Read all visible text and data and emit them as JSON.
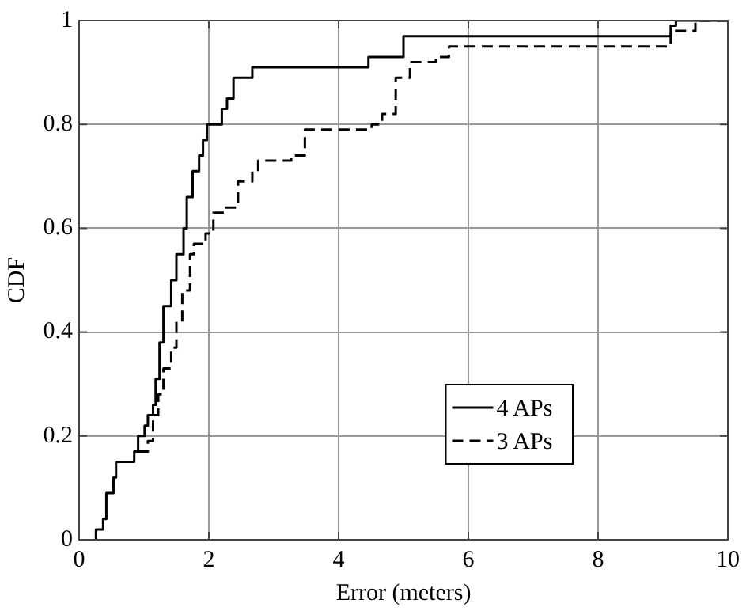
{
  "chart_data": {
    "type": "step",
    "xlabel": "Error (meters)",
    "ylabel": "CDF",
    "xlim": [
      0,
      10
    ],
    "xticks": [
      0,
      2,
      4,
      6,
      8,
      10
    ],
    "ylim": [
      0,
      1
    ],
    "yticks": [
      0,
      0.2,
      0.4,
      0.6,
      0.8,
      1
    ],
    "grid": true,
    "legend": "bottom right",
    "marker": "none",
    "series": [
      {
        "name": "4 APs",
        "color": "#000000",
        "line_style": "solid",
        "x": [
          0.26,
          0.26,
          0.37,
          0.42,
          0.53,
          0.57,
          0.85,
          0.91,
          1.01,
          1.06,
          1.14,
          1.18,
          1.24,
          1.3,
          1.42,
          1.5,
          1.61,
          1.66,
          1.75,
          1.85,
          1.91,
          1.97,
          2.2,
          2.28,
          2.38,
          2.67,
          4.46,
          5.0,
          9.12,
          9.2,
          10
        ],
        "values": [
          0,
          0.02,
          0.04,
          0.09,
          0.12,
          0.15,
          0.17,
          0.2,
          0.22,
          0.24,
          0.26,
          0.31,
          0.38,
          0.45,
          0.5,
          0.55,
          0.6,
          0.66,
          0.71,
          0.74,
          0.77,
          0.8,
          0.83,
          0.85,
          0.89,
          0.91,
          0.93,
          0.97,
          0.99,
          1,
          1
        ]
      },
      {
        "name": "3 APs",
        "color": "#000000",
        "line_style": "dashed",
        "x": [
          0.91,
          1.06,
          1.14,
          1.22,
          1.3,
          1.42,
          1.5,
          1.59,
          1.71,
          1.77,
          1.95,
          2.07,
          2.24,
          2.45,
          2.67,
          2.76,
          3.27,
          3.48,
          4.51,
          4.67,
          4.88,
          5.1,
          5.5,
          5.7,
          9.12,
          9.5,
          10
        ],
        "values": [
          0.17,
          0.19,
          0.24,
          0.28,
          0.33,
          0.37,
          0.42,
          0.48,
          0.55,
          0.57,
          0.59,
          0.63,
          0.64,
          0.69,
          0.71,
          0.73,
          0.74,
          0.79,
          0.8,
          0.82,
          0.89,
          0.92,
          0.93,
          0.95,
          0.98,
          1,
          1
        ]
      }
    ]
  }
}
